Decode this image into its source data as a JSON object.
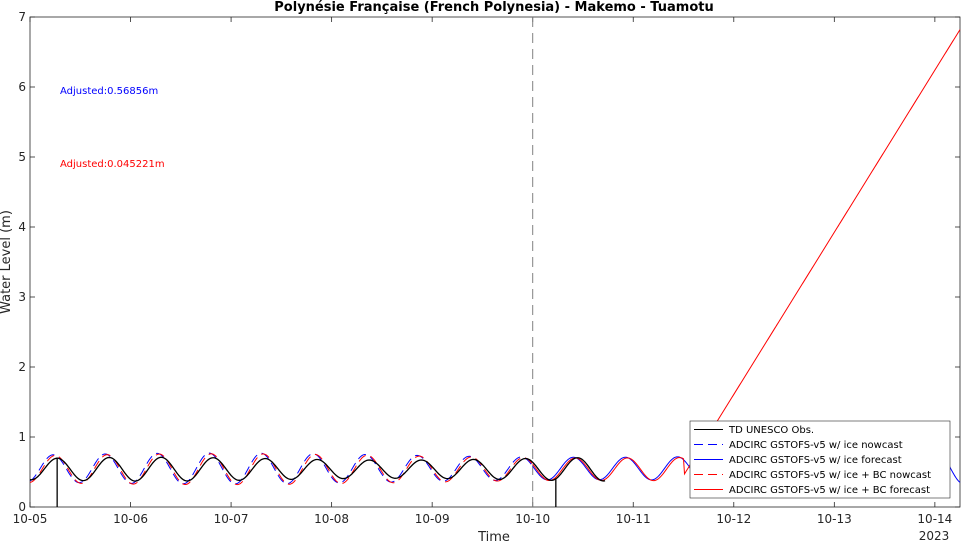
{
  "chart_data": {
    "type": "line",
    "title": "Polynésie Française (French Polynesia) - Makemo - Tuamotu",
    "xlabel": "Time",
    "ylabel": "Water Level (m)",
    "x_year_label": "2023",
    "ylim": [
      0,
      7
    ],
    "xlim": [
      "2023-10-05",
      "2023-10-14 06:00"
    ],
    "x_ticks": [
      "10-05",
      "10-06",
      "10-07",
      "10-08",
      "10-09",
      "10-10",
      "10-11",
      "10-12",
      "10-13",
      "10-14"
    ],
    "y_ticks": [
      "0",
      "1",
      "2",
      "3",
      "4",
      "5",
      "6",
      "7"
    ],
    "grid": false,
    "nowcast_forecast_divider": "2023-10-10",
    "annotations": [
      {
        "text": "Adjusted:0.56856m",
        "color": "#0000ff"
      },
      {
        "text": "Adjusted:0.045221m",
        "color": "#ff0000"
      }
    ],
    "legend_position": "bottom-right",
    "series": [
      {
        "name": "TD UNESCO Obs.",
        "color": "#000000",
        "dash": "solid",
        "description_points": [
          [
            "10-05 00:00",
            0.45
          ],
          [
            "10-05 06:00",
            0.68
          ],
          [
            "10-05 12:00",
            0.42
          ],
          [
            "10-05 18:00",
            0.68
          ],
          [
            "10-06 00:00",
            0.43
          ],
          [
            "10-10 00:00",
            0.8
          ],
          [
            "10-10 16:00",
            0.47
          ]
        ],
        "dropouts": [
          "10-05 06:30",
          "10-10 05:30"
        ],
        "end": "10-10 17:00"
      },
      {
        "name": "ADCIRC GSTOFS-v5 w/ ice nowcast",
        "color": "#0000ff",
        "dash": "dashed",
        "end": "10-10 00:00"
      },
      {
        "name": "ADCIRC GSTOFS-v5 w/ ice forecast",
        "color": "#0000ff",
        "dash": "solid",
        "start": "10-10 00:00",
        "end": "10-14 06:00"
      },
      {
        "name": "ADCIRC GSTOFS-v5 w/ ice + BC nowcast",
        "color": "#ff0000",
        "dash": "dashed",
        "end": "10-10 00:00"
      },
      {
        "name": "ADCIRC GSTOFS-v5 w/ ice + BC forecast",
        "color": "#ff0000",
        "dash": "solid",
        "start": "10-10 00:00",
        "end_points": [
          [
            "10-11 12:00",
            0.45
          ],
          [
            "10-14 06:00",
            6.82
          ]
        ]
      }
    ]
  }
}
